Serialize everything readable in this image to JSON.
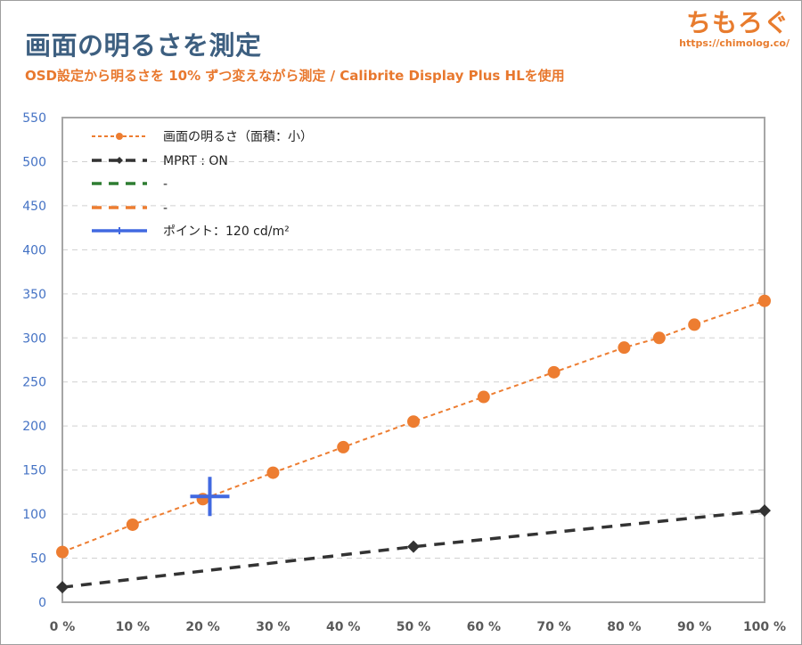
{
  "header": {
    "title": "画面の明るさを測定",
    "subtitle": "OSD設定から明るさを 10% ずつ変えながら測定 / Calibrite Display Plus HLを使用"
  },
  "logo": {
    "text": "ちもろぐ",
    "url": "https://chimolog.co/"
  },
  "chart_data": {
    "type": "line",
    "title": "画面の明るさを測定",
    "subtitle": "OSD設定から明るさを 10% ずつ変えながら測定 / Calibrite Display Plus HLを使用",
    "xlabel": "",
    "ylabel": "",
    "x_ticks": [
      "0 %",
      "10 %",
      "20 %",
      "30 %",
      "40 %",
      "50 %",
      "60 %",
      "70 %",
      "80 %",
      "90 %",
      "100 %"
    ],
    "xlim": [
      0,
      100
    ],
    "ylim": [
      0,
      550
    ],
    "y_ticks": [
      0,
      50,
      100,
      150,
      200,
      250,
      300,
      350,
      400,
      450,
      500,
      550
    ],
    "grid": "horizontal dashed",
    "legend_position": "top-left",
    "series": [
      {
        "name": "画面の明るさ（面積：小）",
        "color": "#ed7d31",
        "style": "dotted-circle",
        "points": [
          [
            0,
            57
          ],
          [
            10,
            88
          ],
          [
            20,
            117
          ],
          [
            30,
            147
          ],
          [
            40,
            176
          ],
          [
            50,
            205
          ],
          [
            60,
            233
          ],
          [
            70,
            261
          ],
          [
            80,
            289
          ],
          [
            85,
            300
          ],
          [
            90,
            315
          ],
          [
            100,
            342
          ]
        ]
      },
      {
        "name": "MPRT : ON",
        "color": "#333333",
        "style": "dashed-diamond",
        "points": [
          [
            0,
            17
          ],
          [
            50,
            63
          ],
          [
            100,
            104
          ]
        ]
      },
      {
        "name": "-",
        "color": "#2e7d32",
        "style": "dashed",
        "points": []
      },
      {
        "name": "-",
        "color": "#ed7d31",
        "style": "dashed",
        "points": []
      },
      {
        "name": "ポイント：120 cd/m²",
        "color": "#4169e1",
        "style": "cross",
        "points": [
          [
            21,
            120
          ]
        ]
      }
    ]
  }
}
